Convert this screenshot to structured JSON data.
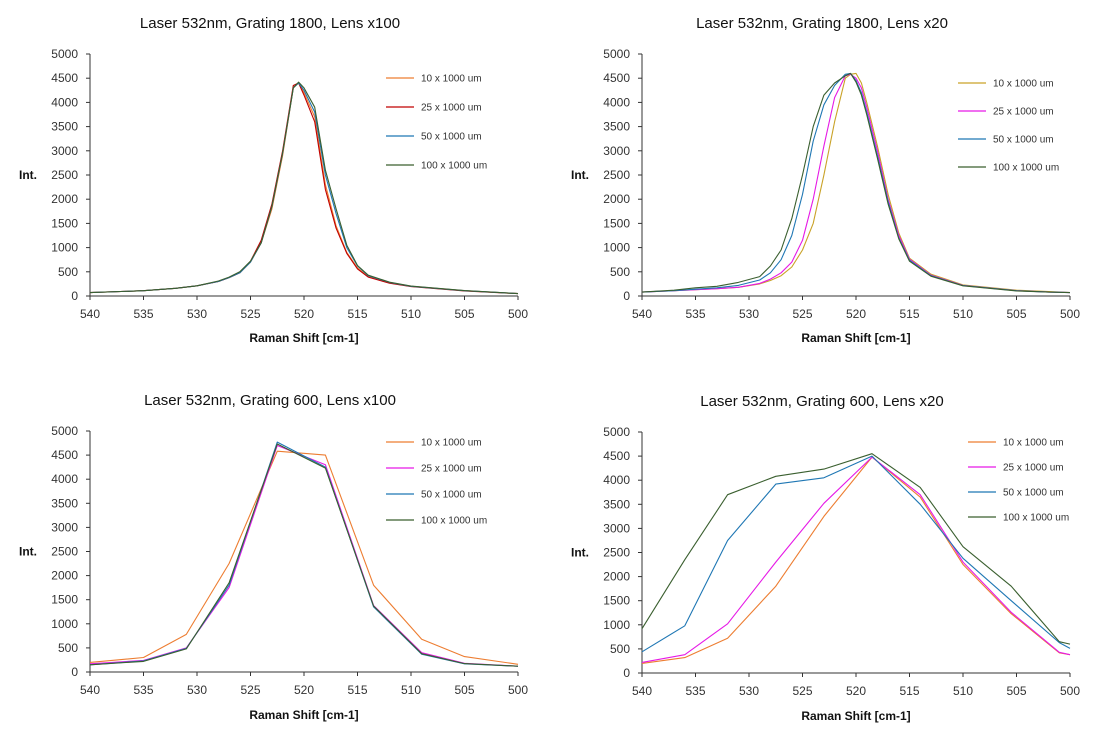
{
  "colors": {
    "series_10": "#ed7d31",
    "series_25_top_left": "#c00000",
    "series_25": "#e619e6",
    "series_50": "#1f77b4",
    "series_100": "#3a5f2f",
    "axis": "#333333",
    "grid": "#d9d9d9"
  },
  "chart_data": [
    {
      "type": "line",
      "title": "Laser 532nm, Grating 1800, Lens x100",
      "xlabel": "Raman Shift [cm-1]",
      "ylabel": "Int.",
      "xlim": [
        540,
        500
      ],
      "ylim": [
        0,
        5000
      ],
      "xticks": [
        "540",
        "535",
        "530",
        "525",
        "520",
        "515",
        "510",
        "505",
        "500"
      ],
      "yticks": [
        "0",
        "500",
        "1000",
        "1500",
        "2000",
        "2500",
        "3000",
        "3500",
        "4000",
        "4500",
        "5000"
      ],
      "grid": "off",
      "legend": "top-right",
      "series": [
        {
          "name": "10 x 1000 um",
          "color": "#ed7d31",
          "x": [
            540,
            535,
            532,
            530,
            528,
            527,
            526,
            525,
            524,
            523,
            522,
            521,
            520.5,
            520,
            519,
            518,
            517,
            516,
            515,
            514,
            512,
            510,
            505,
            500
          ],
          "y": [
            70,
            110,
            160,
            210,
            300,
            380,
            480,
            700,
            1100,
            1800,
            2900,
            4300,
            4400,
            4200,
            3700,
            2300,
            1450,
            900,
            580,
            400,
            270,
            200,
            110,
            50
          ]
        },
        {
          "name": "25 x 1000 um",
          "color": "#c00000",
          "x": [
            540,
            535,
            532,
            530,
            528,
            527,
            526,
            525,
            524,
            523,
            522,
            521,
            520.5,
            520,
            519,
            518,
            517,
            516,
            515,
            514,
            512,
            510,
            505,
            500
          ],
          "y": [
            70,
            110,
            160,
            210,
            300,
            380,
            480,
            720,
            1150,
            1900,
            3000,
            4350,
            4400,
            4150,
            3600,
            2200,
            1400,
            880,
            560,
            390,
            265,
            195,
            105,
            50
          ]
        },
        {
          "name": "50 x 1000 um",
          "color": "#1f77b4",
          "x": [
            540,
            535,
            532,
            530,
            528,
            527,
            526,
            525,
            524,
            523,
            522,
            521,
            520.5,
            520,
            519,
            518,
            517,
            516,
            515,
            514,
            512,
            510,
            505,
            500
          ],
          "y": [
            70,
            110,
            160,
            210,
            300,
            380,
            480,
            700,
            1100,
            1850,
            2950,
            4300,
            4400,
            4250,
            3800,
            2500,
            1700,
            1000,
            620,
            420,
            280,
            200,
            110,
            50
          ]
        },
        {
          "name": "100 x 1000 um",
          "color": "#3a5f2f",
          "x": [
            540,
            535,
            532,
            530,
            528,
            527,
            526,
            525,
            524,
            523,
            522,
            521,
            520.5,
            520,
            519,
            518,
            517,
            516,
            515,
            514,
            512,
            510,
            505,
            500
          ],
          "y": [
            70,
            110,
            160,
            210,
            310,
            390,
            500,
            720,
            1100,
            1850,
            2950,
            4300,
            4420,
            4300,
            3900,
            2600,
            1800,
            1050,
            630,
            430,
            285,
            205,
            112,
            50
          ]
        }
      ]
    },
    {
      "type": "line",
      "title": "Laser 532nm, Grating 1800, Lens x20",
      "xlabel": "Raman Shift [cm-1]",
      "ylabel": "Int.",
      "xlim": [
        540,
        500
      ],
      "ylim": [
        0,
        5000
      ],
      "xticks": [
        "540",
        "535",
        "530",
        "525",
        "520",
        "515",
        "510",
        "505",
        "500"
      ],
      "yticks": [
        "0",
        "500",
        "1000",
        "1500",
        "2000",
        "2500",
        "3000",
        "3500",
        "4000",
        "4500",
        "5000"
      ],
      "grid": "off",
      "legend": "top-right",
      "series": [
        {
          "name": "10 x 1000 um",
          "color": "#c9a227",
          "x": [
            540,
            537,
            535,
            533,
            531,
            529,
            528,
            527,
            526,
            525,
            524,
            523,
            522,
            521,
            520.5,
            520,
            519.5,
            519,
            518,
            517,
            516,
            515,
            513,
            510,
            505,
            502,
            500
          ],
          "y": [
            80,
            110,
            130,
            150,
            180,
            250,
            320,
            420,
            600,
            950,
            1500,
            2500,
            3600,
            4500,
            4580,
            4600,
            4400,
            4000,
            3100,
            2100,
            1300,
            780,
            450,
            230,
            120,
            90,
            70
          ]
        },
        {
          "name": "25 x 1000 um",
          "color": "#e619e6",
          "x": [
            540,
            537,
            535,
            533,
            531,
            529,
            528,
            527,
            526,
            525,
            524,
            523,
            522,
            521,
            520.5,
            520,
            519.5,
            519,
            518,
            517,
            516,
            515,
            513,
            510,
            505,
            502,
            500
          ],
          "y": [
            80,
            110,
            130,
            150,
            180,
            260,
            350,
            480,
            700,
            1150,
            2000,
            3100,
            4100,
            4550,
            4580,
            4500,
            4300,
            3900,
            3000,
            2000,
            1250,
            760,
            430,
            220,
            110,
            80,
            70
          ]
        },
        {
          "name": "50 x 1000 um",
          "color": "#1f77b4",
          "x": [
            540,
            537,
            535,
            533,
            531,
            529,
            528,
            527,
            526,
            525,
            524,
            523,
            522,
            521,
            520.5,
            520,
            519.5,
            519,
            518,
            517,
            516,
            515,
            513,
            510,
            505,
            502,
            500
          ],
          "y": [
            80,
            110,
            140,
            170,
            220,
            330,
            480,
            750,
            1250,
            2100,
            3200,
            3950,
            4350,
            4580,
            4600,
            4450,
            4200,
            3800,
            2900,
            1950,
            1200,
            740,
            420,
            215,
            110,
            80,
            70
          ]
        },
        {
          "name": "100 x 1000 um",
          "color": "#3a5f2f",
          "x": [
            540,
            537,
            535,
            533,
            531,
            529,
            528,
            527,
            526,
            525,
            524,
            523,
            522,
            521,
            520.5,
            520,
            519.5,
            519,
            518,
            517,
            516,
            515,
            513,
            510,
            505,
            502,
            500
          ],
          "y": [
            80,
            120,
            170,
            200,
            280,
            400,
            620,
            950,
            1600,
            2500,
            3500,
            4150,
            4400,
            4550,
            4600,
            4420,
            4150,
            3750,
            2850,
            1900,
            1180,
            720,
            410,
            210,
            105,
            80,
            70
          ]
        }
      ]
    },
    {
      "type": "line",
      "title": "Laser 532nm, Grating 600, Lens x100",
      "xlabel": "Raman Shift [cm-1]",
      "ylabel": "Int.",
      "xlim": [
        540,
        500
      ],
      "ylim": [
        0,
        5000
      ],
      "xticks": [
        "540",
        "535",
        "530",
        "525",
        "520",
        "515",
        "510",
        "505",
        "500"
      ],
      "yticks": [
        "0",
        "500",
        "1000",
        "1500",
        "2000",
        "2500",
        "3000",
        "3500",
        "4000",
        "4500",
        "5000"
      ],
      "grid": "off",
      "legend": "top-right",
      "series": [
        {
          "name": "10 x 1000 um",
          "color": "#ed7d31",
          "x": [
            540,
            535,
            531,
            527,
            522.5,
            518,
            513.5,
            509,
            505,
            500
          ],
          "y": [
            200,
            300,
            780,
            2250,
            4580,
            4500,
            1800,
            680,
            320,
            160
          ]
        },
        {
          "name": "25 x 1000 um",
          "color": "#e619e6",
          "x": [
            540,
            535,
            531,
            527,
            522.5,
            518,
            513.5,
            509,
            505,
            500
          ],
          "y": [
            170,
            240,
            500,
            1750,
            4700,
            4300,
            1380,
            400,
            180,
            120
          ]
        },
        {
          "name": "50 x 1000 um",
          "color": "#1f77b4",
          "x": [
            540,
            535,
            531,
            527,
            522.5,
            518,
            513.5,
            509,
            505,
            500
          ],
          "y": [
            150,
            230,
            490,
            1800,
            4770,
            4250,
            1350,
            370,
            170,
            120
          ]
        },
        {
          "name": "100 x 1000 um",
          "color": "#3a5f2f",
          "x": [
            540,
            535,
            531,
            527,
            522.5,
            518,
            513.5,
            509,
            505,
            500
          ],
          "y": [
            150,
            220,
            480,
            1850,
            4730,
            4230,
            1370,
            380,
            175,
            120
          ]
        }
      ]
    },
    {
      "type": "line",
      "title": "Laser 532nm, Grating 600, Lens x20",
      "xlabel": "Raman Shift [cm-1]",
      "ylabel": "Int.",
      "xlim": [
        540,
        500
      ],
      "ylim": [
        0,
        5000
      ],
      "xticks": [
        "540",
        "535",
        "530",
        "525",
        "520",
        "515",
        "510",
        "505",
        "500"
      ],
      "yticks": [
        "0",
        "500",
        "1000",
        "1500",
        "2000",
        "2500",
        "3000",
        "3500",
        "4000",
        "4500",
        "5000"
      ],
      "grid": "off",
      "legend": "top-right",
      "series": [
        {
          "name": "10 x 1000 um",
          "color": "#ed7d31",
          "x": [
            540,
            536,
            532,
            527.5,
            523,
            518.5,
            514,
            510,
            505.5,
            501,
            500
          ],
          "y": [
            200,
            320,
            720,
            1800,
            3250,
            4480,
            3650,
            2250,
            1230,
            420,
            380
          ]
        },
        {
          "name": "25 x 1000 um",
          "color": "#e619e6",
          "x": [
            540,
            536,
            532,
            527.5,
            523,
            518.5,
            514,
            510,
            505.5,
            501,
            500
          ],
          "y": [
            220,
            380,
            1020,
            2300,
            3520,
            4480,
            3700,
            2300,
            1260,
            430,
            380
          ]
        },
        {
          "name": "50 x 1000 um",
          "color": "#1f77b4",
          "x": [
            540,
            536,
            532,
            527.5,
            523,
            518.5,
            514,
            510,
            505.5,
            501,
            500
          ],
          "y": [
            440,
            980,
            2750,
            3920,
            4050,
            4500,
            3500,
            2380,
            1500,
            630,
            510
          ]
        },
        {
          "name": "100 x 1000 um",
          "color": "#3a5f2f",
          "x": [
            540,
            536,
            532,
            527.5,
            523,
            518.5,
            514,
            510,
            505.5,
            501,
            500
          ],
          "y": [
            920,
            2350,
            3700,
            4080,
            4230,
            4550,
            3850,
            2620,
            1800,
            650,
            600
          ]
        }
      ]
    }
  ]
}
